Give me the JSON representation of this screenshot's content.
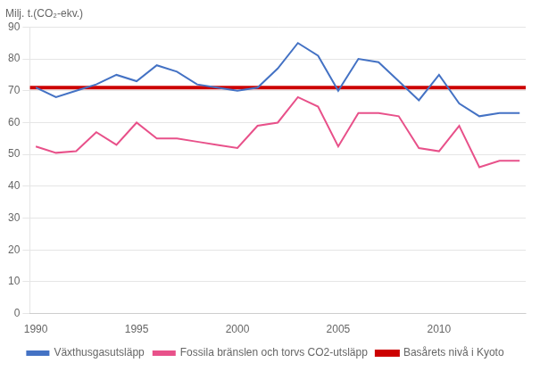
{
  "chart_data": {
    "type": "line",
    "ylabel": "Milj. t.(CO₂-ekv.)",
    "x": [
      1990,
      1991,
      1992,
      1993,
      1994,
      1995,
      1996,
      1997,
      1998,
      1999,
      2000,
      2001,
      2002,
      2003,
      2004,
      2005,
      2006,
      2007,
      2008,
      2009,
      2010,
      2011,
      2012,
      2013,
      2014
    ],
    "series": [
      {
        "name": "Växthusgasutsläpp",
        "color": "#4472C4",
        "values": [
          71,
          68,
          70,
          72,
          75,
          73,
          78,
          76,
          72,
          71,
          70,
          71,
          77,
          85,
          81,
          70,
          80,
          79,
          73,
          67,
          75,
          66,
          62,
          63,
          63
        ]
      },
      {
        "name": "Basårets nivå i Kyoto",
        "color": "#CC0000",
        "type": "hline",
        "value": 71
      },
      {
        "name": "Fossila bränslen och torvs CO2-utsläpp",
        "color": "#E8518A",
        "values": [
          52.5,
          50.5,
          51,
          57,
          53,
          60,
          55,
          55,
          54,
          53,
          52,
          59,
          60,
          68,
          65,
          52.5,
          63,
          63,
          62,
          52,
          51,
          59,
          46,
          48,
          48
        ]
      }
    ],
    "xlim": [
      1989.7,
      2014.3
    ],
    "xticks": [
      1990,
      1995,
      2000,
      2005,
      2010
    ],
    "ylim": [
      0,
      90
    ],
    "yticks": [
      0,
      10,
      20,
      30,
      40,
      50,
      60,
      70,
      80,
      90
    ],
    "grid": "y",
    "legend": "bottom"
  }
}
